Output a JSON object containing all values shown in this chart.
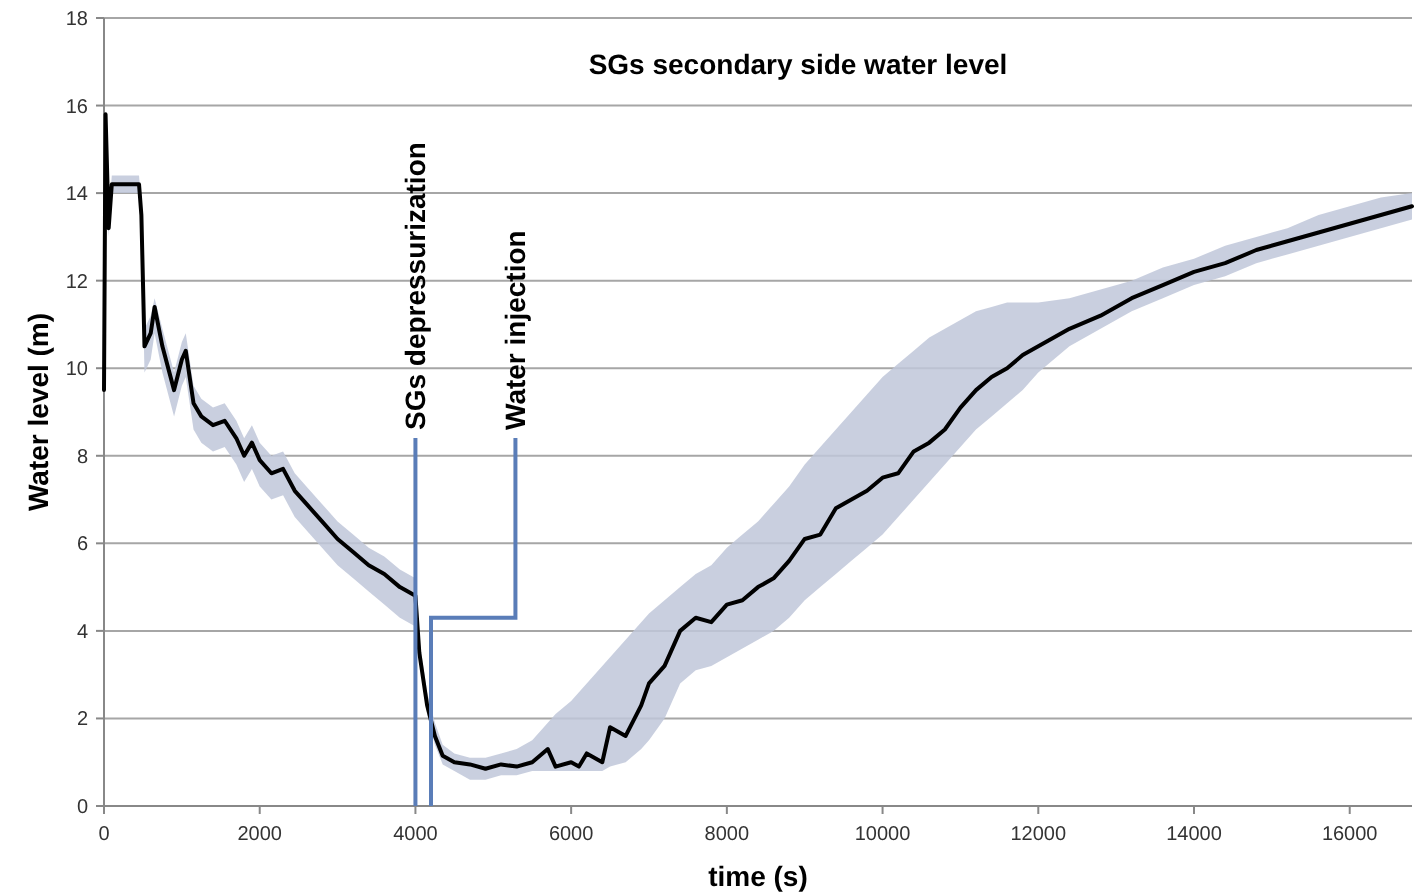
{
  "chart_data": {
    "type": "line",
    "title": "SGs secondary side water level",
    "xlabel": "time (s)",
    "ylabel": "Water level (m)",
    "xlim": [
      0,
      16800
    ],
    "xticks": [
      0,
      2000,
      4000,
      6000,
      8000,
      10000,
      12000,
      14000,
      16000
    ],
    "ylim": [
      0,
      18
    ],
    "yticks": [
      0,
      2,
      4,
      6,
      8,
      10,
      12,
      14,
      16,
      18
    ],
    "grid": "y",
    "line_style": "solid",
    "marker": "none",
    "ref_lines": [
      {
        "axis": "x",
        "value": 4000,
        "label": "SGs depressurization",
        "color": "#5a7db8"
      },
      {
        "axis": "x",
        "value": 4200,
        "label": "Water injection",
        "color": "#5a7db8"
      }
    ],
    "series": [
      {
        "color": "#000000",
        "x": [
          0,
          20,
          60,
          100,
          450,
          480,
          520,
          600,
          650,
          750,
          900,
          1000,
          1050,
          1150,
          1250,
          1400,
          1550,
          1700,
          1800,
          1900,
          2000,
          2150,
          2300,
          2450,
          2600,
          2800,
          3000,
          3200,
          3400,
          3600,
          3800,
          4000,
          4050,
          4150,
          4250,
          4350,
          4500,
          4700,
          4900,
          5100,
          5300,
          5500,
          5700,
          5800,
          6000,
          6100,
          6200,
          6400,
          6500,
          6700,
          6900,
          7000,
          7200,
          7400,
          7600,
          7800,
          8000,
          8200,
          8400,
          8600,
          8800,
          9000,
          9200,
          9400,
          9600,
          9800,
          10000,
          10200,
          10400,
          10600,
          10800,
          11000,
          11200,
          11400,
          11600,
          11800,
          12000,
          12400,
          12800,
          13200,
          13600,
          14000,
          14400,
          14800,
          15200,
          15600,
          16000,
          16400,
          16800
        ],
        "values": [
          9.5,
          15.8,
          13.2,
          14.2,
          14.2,
          13.5,
          10.5,
          10.8,
          11.4,
          10.5,
          9.5,
          10.2,
          10.4,
          9.2,
          8.9,
          8.7,
          8.8,
          8.4,
          8.0,
          8.3,
          7.9,
          7.6,
          7.7,
          7.2,
          6.9,
          6.5,
          6.1,
          5.8,
          5.5,
          5.3,
          5.0,
          4.8,
          3.5,
          2.3,
          1.6,
          1.15,
          1.0,
          0.95,
          0.85,
          0.95,
          0.9,
          1.0,
          1.3,
          0.9,
          1.0,
          0.9,
          1.2,
          1.0,
          1.8,
          1.6,
          2.3,
          2.8,
          3.2,
          4.0,
          4.3,
          4.2,
          4.6,
          4.7,
          5.0,
          5.2,
          5.6,
          6.1,
          6.2,
          6.8,
          7.0,
          7.2,
          7.5,
          7.6,
          8.1,
          8.3,
          8.6,
          9.1,
          9.5,
          9.8,
          10.0,
          10.3,
          10.5,
          10.9,
          11.2,
          11.6,
          11.9,
          12.2,
          12.4,
          12.7,
          12.9,
          13.1,
          13.3,
          13.5,
          13.7
        ],
        "lower": [
          8.6,
          15.5,
          13.0,
          14.0,
          14.0,
          13.3,
          9.9,
          10.2,
          10.8,
          9.9,
          8.9,
          9.6,
          9.8,
          8.6,
          8.3,
          8.1,
          8.2,
          7.8,
          7.4,
          7.7,
          7.3,
          7.0,
          7.1,
          6.6,
          6.3,
          5.9,
          5.5,
          5.2,
          4.9,
          4.6,
          4.3,
          4.1,
          3.3,
          2.1,
          1.4,
          0.95,
          0.8,
          0.6,
          0.6,
          0.7,
          0.7,
          0.8,
          0.8,
          0.8,
          0.8,
          0.8,
          0.8,
          0.8,
          0.9,
          1.0,
          1.3,
          1.5,
          2.0,
          2.8,
          3.1,
          3.2,
          3.4,
          3.6,
          3.8,
          4.0,
          4.3,
          4.7,
          5.0,
          5.3,
          5.6,
          5.9,
          6.2,
          6.6,
          7.0,
          7.4,
          7.8,
          8.2,
          8.6,
          8.9,
          9.2,
          9.5,
          9.9,
          10.5,
          10.9,
          11.3,
          11.6,
          11.9,
          12.1,
          12.4,
          12.6,
          12.8,
          13.0,
          13.2,
          13.4
        ],
        "upper": [
          9.6,
          15.8,
          13.4,
          14.4,
          14.4,
          13.7,
          10.9,
          11.2,
          11.6,
          10.9,
          9.9,
          10.6,
          10.8,
          9.6,
          9.3,
          9.1,
          9.2,
          8.8,
          8.4,
          8.7,
          8.3,
          8.0,
          8.1,
          7.6,
          7.3,
          6.9,
          6.5,
          6.2,
          5.9,
          5.7,
          5.4,
          5.2,
          3.8,
          2.6,
          1.9,
          1.4,
          1.2,
          1.1,
          1.1,
          1.2,
          1.3,
          1.5,
          1.9,
          2.1,
          2.4,
          2.6,
          2.8,
          3.2,
          3.4,
          3.8,
          4.2,
          4.4,
          4.7,
          5.0,
          5.3,
          5.5,
          5.9,
          6.2,
          6.5,
          6.9,
          7.3,
          7.8,
          8.2,
          8.6,
          9.0,
          9.4,
          9.8,
          10.1,
          10.4,
          10.7,
          10.9,
          11.1,
          11.3,
          11.4,
          11.5,
          11.5,
          11.5,
          11.6,
          11.8,
          12.0,
          12.3,
          12.5,
          12.8,
          13.0,
          13.2,
          13.5,
          13.7,
          13.9,
          14.0
        ]
      }
    ]
  }
}
